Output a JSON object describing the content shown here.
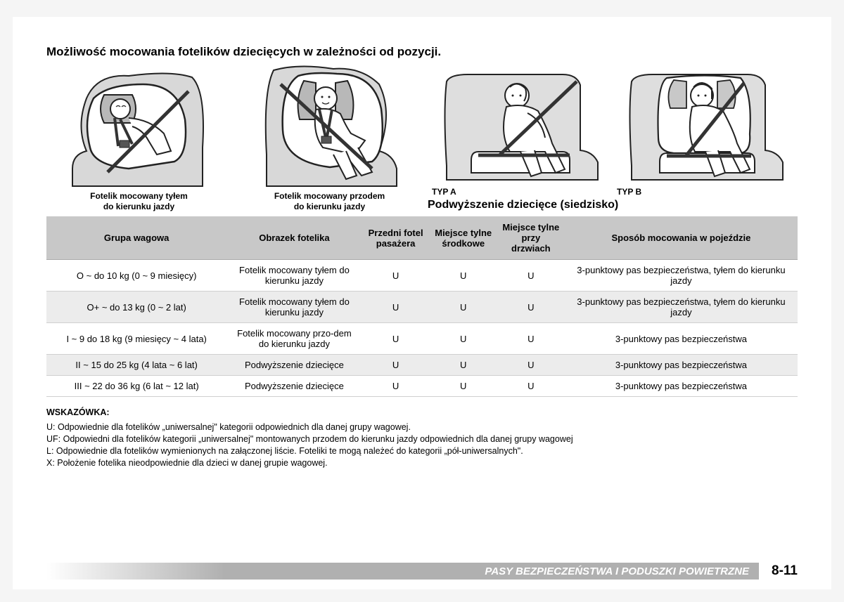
{
  "title": "Możliwość mocowania fotelików dziecięcych w zależności od pozycji.",
  "figures": {
    "rear": "Fotelik mocowany tyłem\ndo kierunku jazdy",
    "front": "Fotelik mocowany przodem\ndo kierunku jazdy",
    "typA": "TYP A",
    "typB": "TYP B",
    "booster": "Podwyższenie dziecięce (siedzisko)"
  },
  "table": {
    "headers": {
      "c0": "Grupa wagowa",
      "c1": "Obrazek fotelika",
      "c2": "Przedni fotel pasażera",
      "c3": "Miejsce tylne środkowe",
      "c4": "Miejsce tylne przy drzwiach",
      "c5": "Sposób mocowania w pojeździe"
    },
    "rows": [
      {
        "c0": "O ~ do 10 kg (0 ~ 9 miesięcy)",
        "c1": "Fotelik mocowany tyłem do kierunku jazdy",
        "c2": "U",
        "c3": "U",
        "c4": "U",
        "c5": "3-punktowy pas bezpieczeństwa, tyłem do kierunku jazdy"
      },
      {
        "c0": "O+ ~ do 13 kg (0 ~ 2 lat)",
        "c1": "Fotelik mocowany tyłem do kierunku jazdy",
        "c2": "U",
        "c3": "U",
        "c4": "U",
        "c5": "3-punktowy pas bezpieczeństwa, tyłem do kierunku jazdy"
      },
      {
        "c0": "I ~ 9 do 18 kg (9 miesięcy ~ 4 lata)",
        "c1": "Fotelik mocowany przo-dem do kierunku jazdy",
        "c2": "U",
        "c3": "U",
        "c4": "U",
        "c5": "3-punktowy pas bezpieczeństwa"
      },
      {
        "c0": "II ~ 15 do 25 kg (4 lata ~ 6 lat)",
        "c1": "Podwyższenie dziecięce",
        "c2": "U",
        "c3": "U",
        "c4": "U",
        "c5": "3-punktowy pas bezpieczeństwa"
      },
      {
        "c0": "III ~ 22 do 36 kg (6 lat ~ 12 lat)",
        "c1": "Podwyższenie dziecięce",
        "c2": "U",
        "c3": "U",
        "c4": "U",
        "c5": "3-punktowy pas bezpieczeństwa"
      }
    ]
  },
  "notes": {
    "heading": "WSKAZÓWKA:",
    "u": "U: Odpowiednie dla fotelików „uniwersalnej\" kategorii odpowiednich dla danej grupy wagowej.",
    "uf": "UF: Odpowiedni dla fotelików kategorii „uniwersalnej\" montowanych przodem do kierunku jazdy odpowiednich dla danej grupy wagowej",
    "l": "L: Odpowiednie dla fotelików wymienionych na załączonej liście. Foteliki te mogą należeć do kategorii „pół-uniwersalnych\".",
    "x": "X: Położenie fotelika nieodpowiednie dla dzieci w danej grupie wagowej."
  },
  "footer": {
    "section": "PASY BEZPIECZEŃSTWA I PODUSZKI POWIETRZNE",
    "page": "8-11"
  },
  "colors": {
    "header_bg": "#c8c8c8",
    "row_alt_bg": "#ececec",
    "border": "#d0d0d0",
    "footer_bar": "#b0b0b0"
  }
}
